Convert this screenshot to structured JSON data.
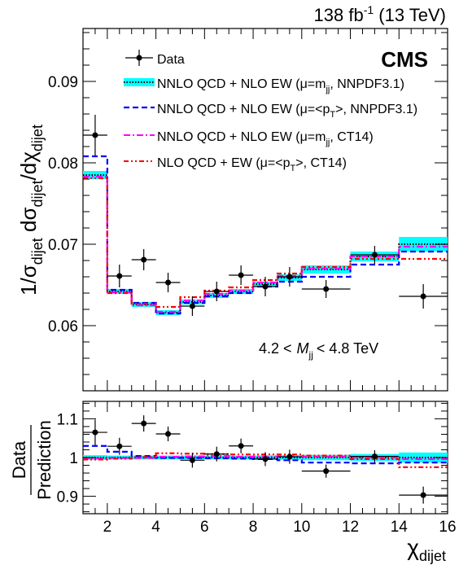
{
  "header": {
    "lumi_value": "138 fb",
    "lumi_exp": "-1",
    "lumi_energy": " (13 TeV)",
    "experiment": "CMS"
  },
  "annotation": {
    "mass_lo": "4.2 <",
    "mass_var": "M",
    "mass_sub": "jj",
    "mass_hi": "< 4.8 TeV"
  },
  "axes": {
    "ylabel_main": "1/σ",
    "ylabel_sub1": "dijet",
    "ylabel_mid": " dσ",
    "ylabel_sub2": "dijet",
    "ylabel_end": "/dχ",
    "ylabel_sub3": "dijet",
    "ratio_ylabel_top": "Data",
    "ratio_ylabel_bottom": "Prediction",
    "xlabel": "χ",
    "xlabel_sub": "dijet"
  },
  "legend": [
    {
      "label": "Data"
    },
    {
      "label": "NNLO QCD + NLO EW (μ=m",
      "sub": "jj",
      "tail": ", NNPDF3.1)"
    },
    {
      "label": "NNLO QCD + NLO EW (μ=<p",
      "sub": "T",
      "tail": ">, NNPDF3.1)"
    },
    {
      "label": "NNLO QCD + NLO EW (μ=m",
      "sub": "jj",
      "tail": ", CT14)"
    },
    {
      "label": "NLO QCD + EW (μ=<p",
      "sub": "T",
      "tail": ">, CT14)"
    }
  ],
  "chart_data": [
    {
      "type": "line",
      "panel": "main",
      "xlim": [
        1,
        16
      ],
      "ylim": [
        0.052,
        0.0965
      ],
      "xticks": [
        2,
        4,
        6,
        8,
        10,
        12,
        14,
        16
      ],
      "yticks": [
        0.06,
        0.07,
        0.08,
        0.09
      ],
      "ytick_labels": [
        "0.06",
        "0.07",
        "0.08",
        "0.09"
      ],
      "bin_edges": [
        1,
        2,
        3,
        4,
        5,
        6,
        7,
        8,
        9,
        10,
        12,
        14,
        16
      ],
      "series": [
        {
          "style": "band",
          "color": "#00ffff",
          "values": [
            0.0785,
            0.0642,
            0.0626,
            0.0616,
            0.0629,
            0.0637,
            0.0642,
            0.0651,
            0.0659,
            0.0669,
            0.0685,
            0.07
          ],
          "errors": [
            0.0005,
            0.0003,
            0.0003,
            0.0003,
            0.0003,
            0.0003,
            0.0003,
            0.0003,
            0.0004,
            0.0005,
            0.0006,
            0.0009
          ]
        },
        {
          "style": "dotted",
          "color": "#000000",
          "values": [
            0.0785,
            0.0642,
            0.0626,
            0.0616,
            0.0629,
            0.0637,
            0.0642,
            0.0651,
            0.0659,
            0.0669,
            0.0685,
            0.07
          ]
        },
        {
          "style": "dashed",
          "color": "#0000ff",
          "values": [
            0.0808,
            0.0644,
            0.0628,
            0.0615,
            0.0628,
            0.0636,
            0.064,
            0.0648,
            0.0654,
            0.066,
            0.0675,
            0.0691
          ]
        },
        {
          "style": "dashdot",
          "color": "#ff00ff",
          "values": [
            0.0783,
            0.0641,
            0.0625,
            0.0617,
            0.0631,
            0.0639,
            0.0643,
            0.0653,
            0.0661,
            0.067,
            0.0685,
            0.0697
          ]
        },
        {
          "style": "dashdotdot",
          "color": "#ff0000",
          "values": [
            0.0781,
            0.064,
            0.0627,
            0.0623,
            0.0635,
            0.0643,
            0.0647,
            0.0656,
            0.0664,
            0.0672,
            0.0682,
            0.0682
          ]
        }
      ],
      "data": {
        "x": [
          1.5,
          2.5,
          3.5,
          4.5,
          5.5,
          6.5,
          7.5,
          8.5,
          9.5,
          11,
          13,
          15
        ],
        "xerr": [
          0.5,
          0.5,
          0.5,
          0.5,
          0.5,
          0.5,
          0.5,
          0.5,
          0.5,
          1,
          1,
          1
        ],
        "y": [
          0.0834,
          0.0661,
          0.0681,
          0.0653,
          0.0624,
          0.0642,
          0.0662,
          0.0648,
          0.066,
          0.0645,
          0.0687,
          0.0636
        ],
        "yerr": [
          0.0025,
          0.0014,
          0.0013,
          0.0012,
          0.0012,
          0.0012,
          0.0012,
          0.0012,
          0.0012,
          0.0011,
          0.0011,
          0.0015
        ]
      }
    },
    {
      "type": "line",
      "panel": "ratio",
      "xlim": [
        1,
        16
      ],
      "ylim": [
        0.855,
        1.145
      ],
      "xticks": [
        2,
        4,
        6,
        8,
        10,
        12,
        14,
        16
      ],
      "yticks": [
        0.9,
        1.0,
        1.1
      ],
      "ytick_labels": [
        "0.9",
        "1",
        "1.1"
      ],
      "bin_edges": [
        1,
        2,
        3,
        4,
        5,
        6,
        7,
        8,
        9,
        10,
        12,
        14,
        16
      ],
      "series": [
        {
          "style": "band",
          "color": "#00ffff",
          "values": [
            1,
            1,
            1,
            1,
            1,
            1,
            1,
            1,
            1,
            1,
            1,
            1
          ],
          "errors": [
            0.006,
            0.005,
            0.005,
            0.005,
            0.005,
            0.005,
            0.005,
            0.005,
            0.006,
            0.007,
            0.009,
            0.013
          ]
        },
        {
          "style": "dotted",
          "color": "#000000",
          "values": [
            1,
            1,
            1,
            1,
            1,
            1,
            1,
            1,
            1,
            1,
            1,
            1
          ]
        },
        {
          "style": "dashed",
          "color": "#0000ff",
          "values": [
            1.03,
            1.015,
            1.004,
            0.999,
            0.999,
            0.998,
            0.997,
            0.996,
            0.993,
            0.987,
            0.985,
            0.987
          ]
        },
        {
          "style": "dashdot",
          "color": "#ff00ff",
          "values": [
            0.998,
            0.999,
            0.999,
            1.002,
            1.003,
            1.004,
            1.002,
            1.003,
            1.003,
            1.002,
            1.0,
            0.996
          ]
        },
        {
          "style": "dashdotdot",
          "color": "#ff0000",
          "values": [
            0.995,
            0.997,
            1.001,
            1.011,
            1.01,
            1.009,
            1.008,
            1.008,
            1.008,
            1.005,
            0.996,
            0.975
          ]
        }
      ],
      "data": {
        "x": [
          1.5,
          2.5,
          3.5,
          4.5,
          5.5,
          6.5,
          7.5,
          8.5,
          9.5,
          11,
          13,
          15
        ],
        "xerr": [
          0.5,
          0.5,
          0.5,
          0.5,
          0.5,
          0.5,
          0.5,
          0.5,
          0.5,
          1,
          1,
          1
        ],
        "y": [
          1.065,
          1.029,
          1.088,
          1.061,
          0.993,
          1.009,
          1.03,
          0.996,
          1.002,
          0.965,
          1.003,
          0.903
        ],
        "yerr": [
          0.033,
          0.022,
          0.021,
          0.019,
          0.019,
          0.019,
          0.019,
          0.018,
          0.018,
          0.017,
          0.016,
          0.022
        ]
      }
    }
  ]
}
